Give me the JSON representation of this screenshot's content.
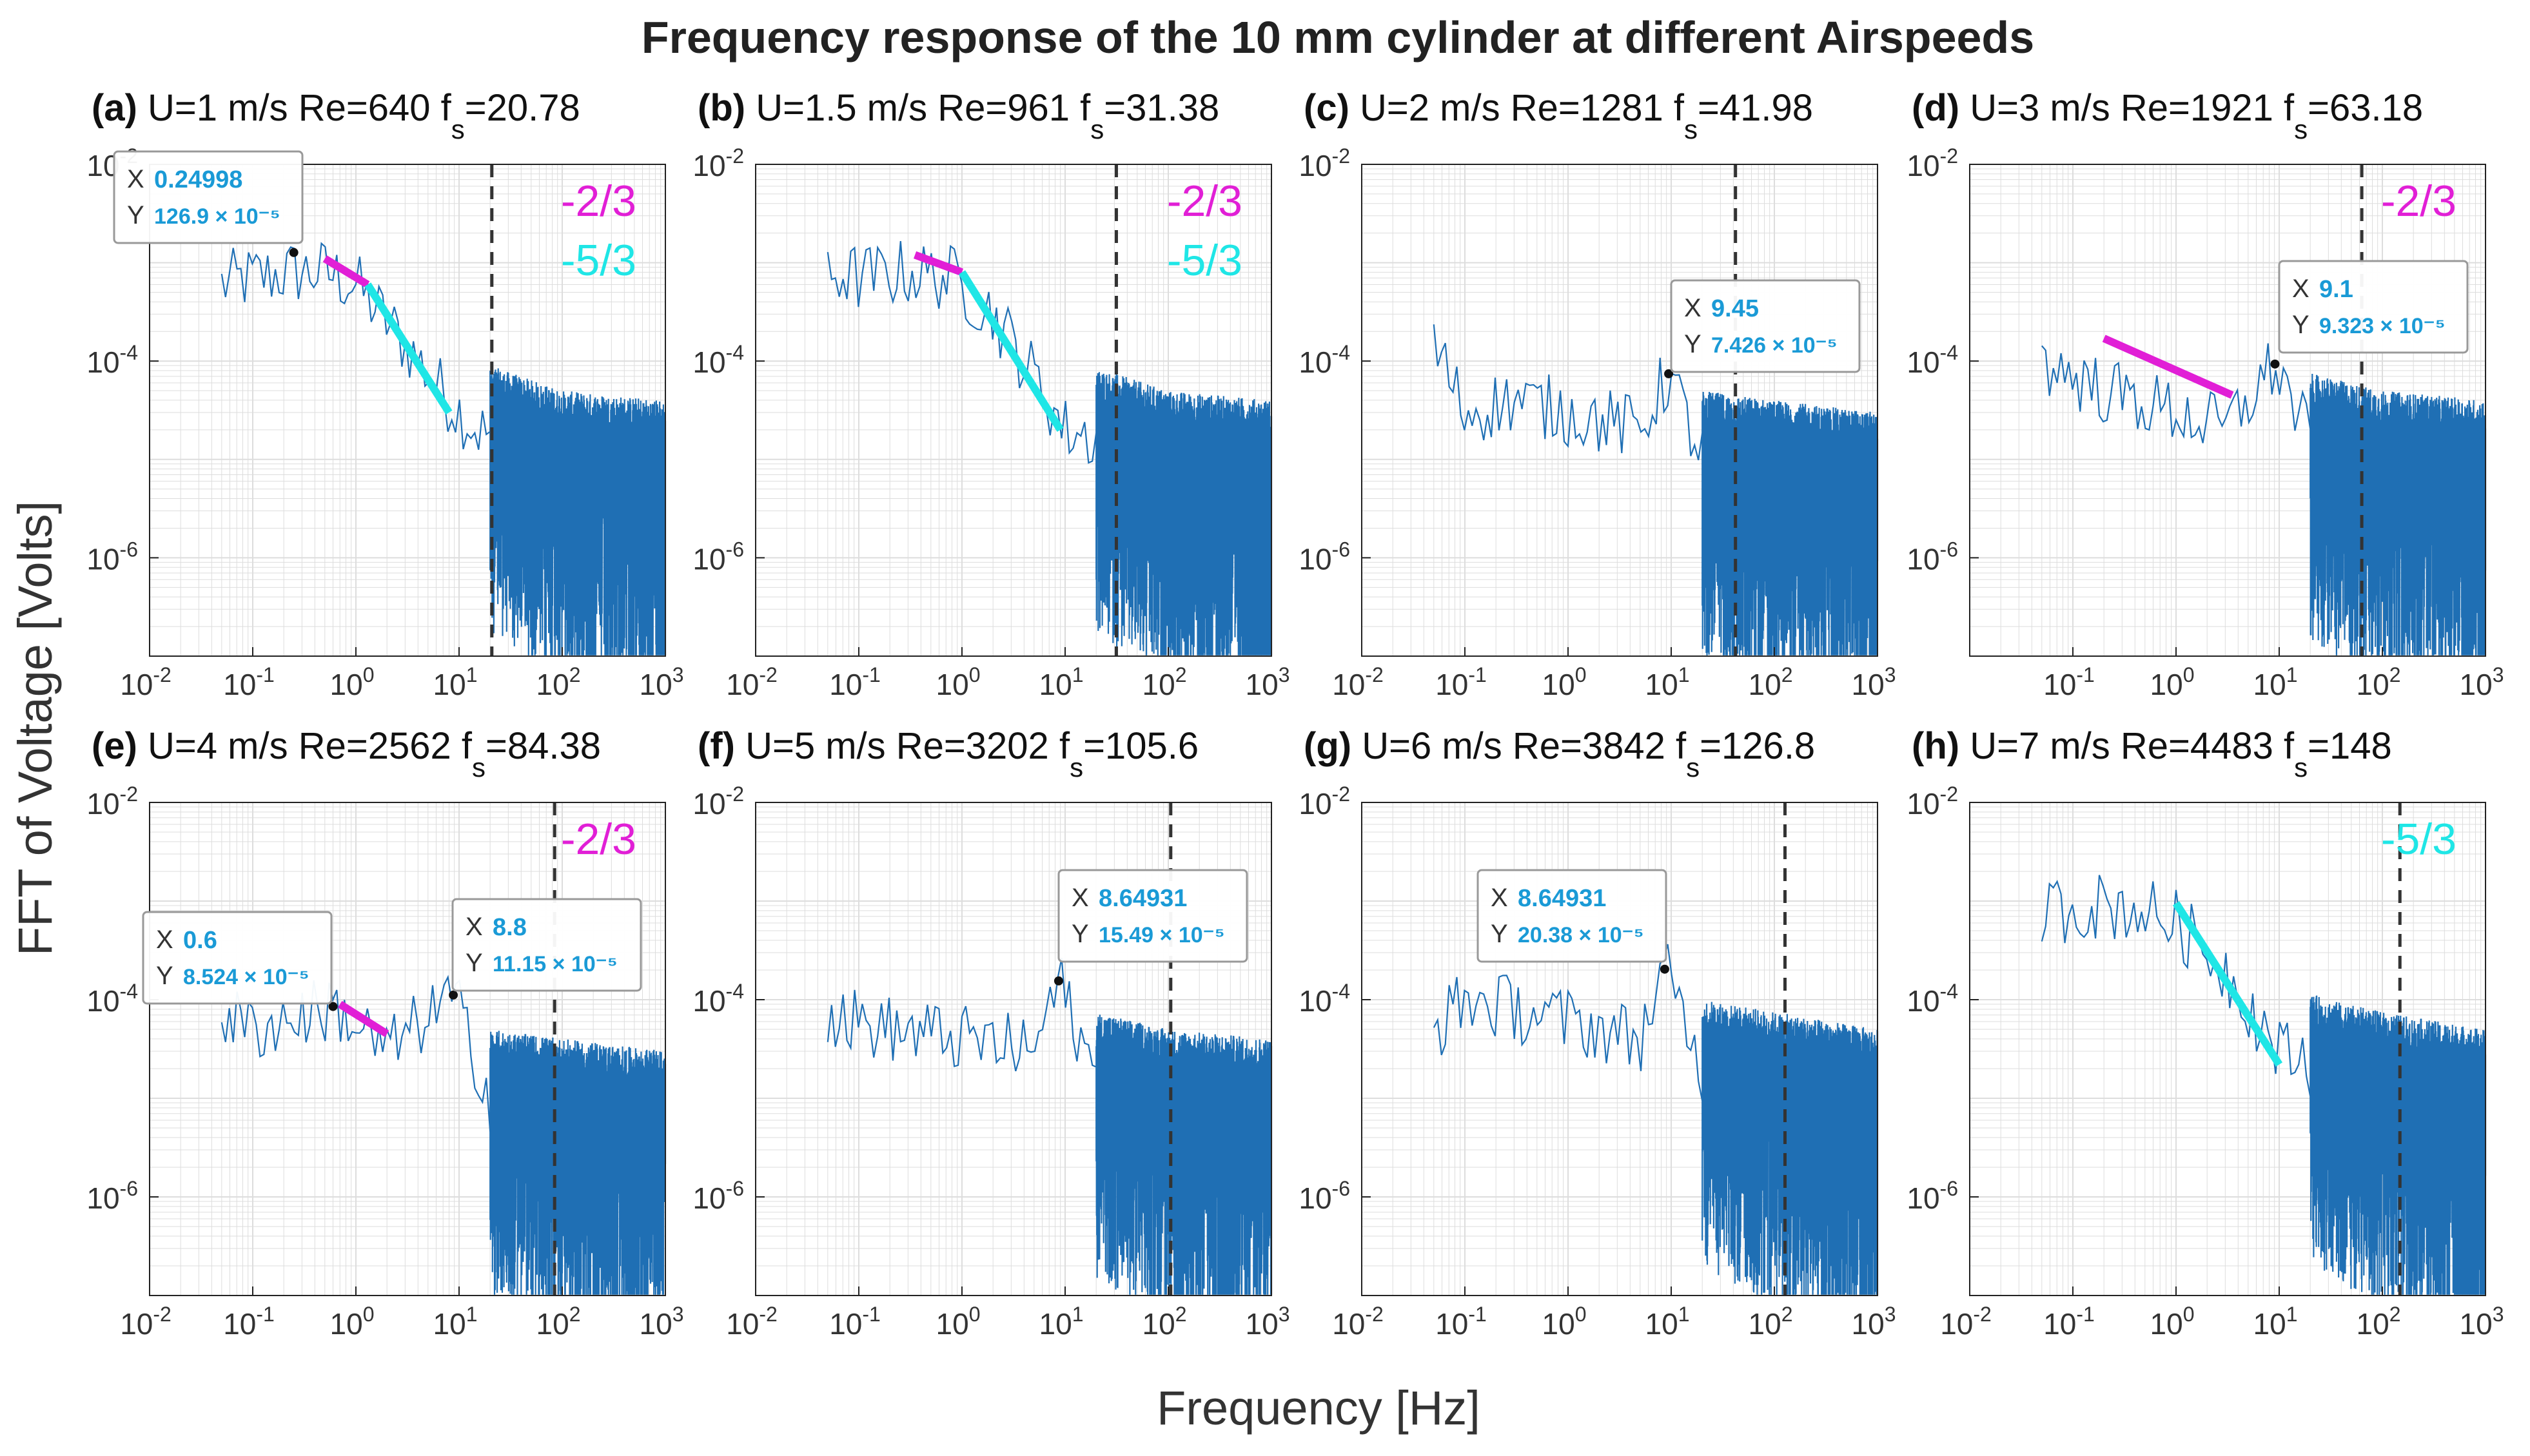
{
  "figure": {
    "title": "Frequency response of the 10 mm cylinder at different Airspeeds",
    "xlabel": "Frequency [Hz]",
    "ylabel": "FFT of Voltage [Volts]"
  },
  "colors": {
    "spectrum": "#1f6fb4",
    "slope_neg_2_3": "#e11fd6",
    "slope_neg_5_3": "#1fe6e6",
    "datatip_value": "#1a9ad6",
    "fs_line": "#333333",
    "frame": "#222222",
    "grid": "#dddddd"
  },
  "chart_data": [
    {
      "type": "line",
      "label": "(a)",
      "U": "U=1 m/s",
      "Re": "Re=640",
      "fs_base": "f",
      "fs_sub": "s",
      "fs_value": "=20.78",
      "xlim": [
        0.01,
        1000
      ],
      "ylim": [
        1e-07,
        0.01
      ],
      "fs": 20.78,
      "x_log_scale": true,
      "y_log_scale": true,
      "x_ticks": [
        "10-2",
        "10-1",
        "100",
        "101",
        "102",
        "103"
      ],
      "y_ticks": [
        "10-2",
        "10-4",
        "10-6"
      ],
      "slope_labels": [
        "-2/3",
        "-5/3"
      ],
      "peak": {
        "x": 0.25,
        "y": 0.001269
      },
      "datatips": [
        {
          "x_label": "X",
          "y_label": "Y",
          "x_text": "0.24998",
          "y_text": "126.9 × 10⁻⁵"
        }
      ],
      "spectrum_profile": [
        [
          0.05,
          0.0006
        ],
        [
          0.1,
          0.0007
        ],
        [
          0.25,
          0.0008
        ],
        [
          0.5,
          0.0008
        ],
        [
          1.0,
          0.0006
        ],
        [
          3.0,
          0.00015
        ],
        [
          8.0,
          4e-05
        ],
        [
          15.0,
          2e-05
        ],
        [
          100,
          1e-05
        ],
        [
          1000,
          8e-06
        ]
      ],
      "slope_lines": [
        {
          "slope": "-2/3",
          "x": [
            0.5,
            1.3
          ],
          "y": [
            0.0011,
            0.0006
          ]
        },
        {
          "slope": "-5/3",
          "x": [
            1.3,
            8.0
          ],
          "y": [
            0.0006,
            3e-05
          ]
        }
      ]
    },
    {
      "type": "line",
      "label": "(b)",
      "U": "U=1.5 m/s",
      "Re": "Re=961",
      "fs_base": "f",
      "fs_sub": "s",
      "fs_value": "=31.38",
      "xlim": [
        0.01,
        1000
      ],
      "ylim": [
        1e-07,
        0.01
      ],
      "fs": 31.38,
      "x_log_scale": true,
      "y_log_scale": true,
      "x_ticks": [
        "10-2",
        "10-1",
        "100",
        "101",
        "102",
        "103"
      ],
      "y_ticks": [
        "10-2",
        "10-4",
        "10-6"
      ],
      "slope_labels": [
        "-2/3",
        "-5/3"
      ],
      "peak": null,
      "datatips": [],
      "spectrum_profile": [
        [
          0.05,
          0.0008
        ],
        [
          0.1,
          0.0007
        ],
        [
          0.3,
          0.0008
        ],
        [
          0.8,
          0.0007
        ],
        [
          2.0,
          0.0003
        ],
        [
          5.0,
          7e-05
        ],
        [
          10.0,
          2e-05
        ],
        [
          30.0,
          1.5e-05
        ],
        [
          100,
          1e-05
        ],
        [
          1000,
          8e-06
        ]
      ],
      "slope_lines": [
        {
          "slope": "-2/3",
          "x": [
            0.35,
            1.0
          ],
          "y": [
            0.0012,
            0.0008
          ]
        },
        {
          "slope": "-5/3",
          "x": [
            1.0,
            9.0
          ],
          "y": [
            0.0008,
            2e-05
          ]
        }
      ]
    },
    {
      "type": "line",
      "label": "(c)",
      "U": "U=2 m/s",
      "Re": "Re=1281",
      "fs_base": "f",
      "fs_sub": "s",
      "fs_value": "=41.98",
      "xlim": [
        0.01,
        1000
      ],
      "ylim": [
        1e-07,
        0.01
      ],
      "fs": 41.98,
      "x_log_scale": true,
      "y_log_scale": true,
      "x_ticks": [
        "10-2",
        "10-1",
        "100",
        "101",
        "102",
        "103"
      ],
      "y_ticks": [
        "10-2",
        "10-4",
        "10-6"
      ],
      "slope_labels": [],
      "peak": {
        "x": 9.45,
        "y": 7.426e-05
      },
      "datatips": [
        {
          "x_label": "X",
          "y_label": "Y",
          "x_text": "9.45",
          "y_text": "7.426 × 10⁻⁵"
        }
      ],
      "spectrum_profile": [
        [
          0.05,
          0.00015
        ],
        [
          0.1,
          3e-05
        ],
        [
          0.3,
          4e-05
        ],
        [
          1.0,
          3e-05
        ],
        [
          5.0,
          2e-05
        ],
        [
          9.45,
          7.4e-05
        ],
        [
          20.0,
          1e-05
        ],
        [
          100,
          8e-06
        ],
        [
          1000,
          6e-06
        ]
      ],
      "slope_lines": []
    },
    {
      "type": "line",
      "label": "(d)",
      "U": "U=3 m/s",
      "Re": "Re=1921",
      "fs_base": "f",
      "fs_sub": "s",
      "fs_value": "=63.18",
      "xlim": [
        0.01,
        1000
      ],
      "ylim": [
        1e-07,
        0.01
      ],
      "fs": 63.18,
      "x_log_scale": true,
      "y_log_scale": true,
      "x_ticks": [
        "10-1",
        "100",
        "101",
        "102",
        "103"
      ],
      "y_ticks": [
        "10-2",
        "10-4",
        "10-6"
      ],
      "slope_labels": [
        "-2/3"
      ],
      "peak": {
        "x": 9.1,
        "y": 9.323e-05
      },
      "datatips": [
        {
          "x_label": "X",
          "y_label": "Y",
          "x_text": "9.1",
          "y_text": "9.323 × 10⁻⁵"
        }
      ],
      "spectrum_profile": [
        [
          0.05,
          0.0001
        ],
        [
          0.2,
          5e-05
        ],
        [
          1.0,
          3e-05
        ],
        [
          3.0,
          2e-05
        ],
        [
          9.1,
          9.3e-05
        ],
        [
          20.0,
          1.5e-05
        ],
        [
          100,
          1e-05
        ],
        [
          1000,
          8e-06
        ]
      ],
      "slope_lines": [
        {
          "slope": "-2/3",
          "x": [
            0.2,
            3.5
          ],
          "y": [
            0.00017,
            4.5e-05
          ]
        }
      ]
    },
    {
      "type": "line",
      "label": "(e)",
      "U": "U=4 m/s",
      "Re": "Re=2562",
      "fs_base": "f",
      "fs_sub": "s",
      "fs_value": "=84.38",
      "xlim": [
        0.01,
        1000
      ],
      "ylim": [
        1e-07,
        0.01
      ],
      "fs": 84.38,
      "x_log_scale": true,
      "y_log_scale": true,
      "x_ticks": [
        "10-2",
        "10-1",
        "100",
        "101",
        "102",
        "103"
      ],
      "y_ticks": [
        "10-2",
        "10-4",
        "10-6"
      ],
      "slope_labels": [
        "-2/3"
      ],
      "peak": {
        "x": 0.6,
        "y": 8.524e-05
      },
      "datatips": [
        {
          "x_label": "X",
          "y_label": "Y",
          "x_text": "0.6",
          "y_text": "8.524 × 10⁻⁵"
        },
        {
          "x_label": "X",
          "y_label": "Y",
          "x_text": "8.8",
          "y_text": "11.15 × 10⁻⁵"
        }
      ],
      "spectrum_profile": [
        [
          0.05,
          7e-05
        ],
        [
          0.1,
          5e-05
        ],
        [
          0.6,
          8.5e-05
        ],
        [
          2.0,
          3e-05
        ],
        [
          8.8,
          0.00011
        ],
        [
          20.0,
          1e-05
        ],
        [
          100,
          8e-06
        ],
        [
          1000,
          6e-06
        ]
      ],
      "slope_lines": [
        {
          "slope": "-2/3",
          "x": [
            0.7,
            2.0
          ],
          "y": [
            9e-05,
            4.5e-05
          ]
        }
      ]
    },
    {
      "type": "line",
      "label": "(f)",
      "U": "U=5 m/s",
      "Re": "Re=3202",
      "fs_base": "f",
      "fs_sub": "s",
      "fs_value": "=105.6",
      "xlim": [
        0.01,
        1000
      ],
      "ylim": [
        1e-07,
        0.01
      ],
      "fs": 105.6,
      "x_log_scale": true,
      "y_log_scale": true,
      "x_ticks": [
        "10-2",
        "10-1",
        "100",
        "101",
        "102",
        "103"
      ],
      "y_ticks": [
        "10-2",
        "10-4",
        "10-6"
      ],
      "slope_labels": [],
      "peak": {
        "x": 8.64931,
        "y": 0.0001549
      },
      "datatips": [
        {
          "x_label": "X",
          "y_label": "Y",
          "x_text": "8.64931",
          "y_text": "15.49 × 10⁻⁵"
        }
      ],
      "spectrum_profile": [
        [
          0.05,
          7e-05
        ],
        [
          0.2,
          5e-05
        ],
        [
          1.0,
          4e-05
        ],
        [
          5.0,
          3e-05
        ],
        [
          8.65,
          0.000155
        ],
        [
          20.0,
          1.5e-05
        ],
        [
          100,
          1e-05
        ],
        [
          1000,
          8e-06
        ]
      ],
      "slope_lines": []
    },
    {
      "type": "line",
      "label": "(g)",
      "U": "U=6 m/s",
      "Re": "Re=3842",
      "fs_base": "f",
      "fs_sub": "s",
      "fs_value": "=126.8",
      "xlim": [
        0.01,
        1000
      ],
      "ylim": [
        1e-07,
        0.01
      ],
      "fs": 126.8,
      "x_log_scale": true,
      "y_log_scale": true,
      "x_ticks": [
        "10-2",
        "10-1",
        "100",
        "101",
        "102",
        "103"
      ],
      "y_ticks": [
        "10-2",
        "10-4",
        "10-6"
      ],
      "slope_labels": [],
      "peak": {
        "x": 8.64931,
        "y": 0.0002038
      },
      "datatips": [
        {
          "x_label": "X",
          "y_label": "Y",
          "x_text": "8.64931",
          "y_text": "20.38 × 10⁻⁵"
        }
      ],
      "spectrum_profile": [
        [
          0.05,
          5e-05
        ],
        [
          0.1,
          0.0001
        ],
        [
          0.3,
          8e-05
        ],
        [
          1.0,
          6e-05
        ],
        [
          5.0,
          4e-05
        ],
        [
          8.65,
          0.0002
        ],
        [
          20.0,
          2e-05
        ],
        [
          100,
          1.5e-05
        ],
        [
          1000,
          1e-05
        ]
      ],
      "slope_lines": []
    },
    {
      "type": "line",
      "label": "(h)",
      "U": "U=7 m/s",
      "Re": "Re=4483",
      "fs_base": "f",
      "fs_sub": "s",
      "fs_value": "=148",
      "xlim": [
        0.01,
        1000
      ],
      "ylim": [
        1e-07,
        0.01
      ],
      "fs": 148,
      "x_log_scale": true,
      "y_log_scale": true,
      "x_ticks": [
        "10-2",
        "10-1",
        "100",
        "101",
        "102",
        "103"
      ],
      "y_ticks": [
        "10-2",
        "10-4",
        "10-6"
      ],
      "slope_labels": [
        "-5/3"
      ],
      "peak": null,
      "datatips": [],
      "spectrum_profile": [
        [
          0.05,
          0.0008
        ],
        [
          0.2,
          0.0009
        ],
        [
          0.5,
          0.0008
        ],
        [
          1.0,
          0.0006
        ],
        [
          3.0,
          0.0002
        ],
        [
          10.0,
          3e-05
        ],
        [
          30.0,
          2e-05
        ],
        [
          100,
          1.5e-05
        ],
        [
          1000,
          1e-05
        ]
      ],
      "slope_lines": [
        {
          "slope": "-5/3",
          "x": [
            1.0,
            10.0
          ],
          "y": [
            0.00095,
            2.2e-05
          ]
        }
      ]
    }
  ]
}
